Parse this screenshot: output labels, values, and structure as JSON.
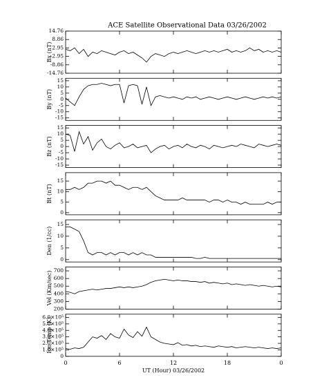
{
  "chart_data": [
    {
      "type": "line",
      "title": "ACE Satellite Observational Data   03/26/2002",
      "ylabel": "Bx (nT)",
      "x": [
        0,
        0.5,
        1,
        1.5,
        2,
        2.5,
        3,
        3.5,
        4,
        4.5,
        5,
        5.5,
        6,
        6.5,
        7,
        7.5,
        8,
        8.5,
        9,
        9.5,
        10,
        10.5,
        11,
        11.5,
        12,
        12.5,
        13,
        13.5,
        14,
        14.5,
        15,
        15.5,
        16,
        16.5,
        17,
        17.5,
        18,
        18.5,
        19,
        19.5,
        20,
        20.5,
        21,
        21.5,
        22,
        22.5,
        23,
        23.5,
        24
      ],
      "values": [
        2,
        1,
        3,
        -1,
        2,
        -3,
        0,
        -1,
        1,
        0,
        -1,
        -2,
        0,
        1,
        -1,
        0,
        -2,
        -4,
        -7,
        -3,
        -1,
        -2,
        -3,
        -1,
        0,
        -1,
        0,
        1,
        0,
        -1,
        0,
        1,
        0,
        1,
        0,
        1,
        2,
        0,
        1,
        0,
        1,
        3,
        1,
        2,
        0,
        1,
        0,
        1,
        0
      ],
      "color": "#000000",
      "xlim": [
        0,
        24
      ],
      "xticks": [
        0,
        6,
        12,
        18,
        {
          "value": 24,
          "label": "0"
        }
      ],
      "ylim": [
        -14.76,
        14.76
      ],
      "yticks": [
        14.76,
        8.86,
        2.95,
        -2.95,
        -8.86,
        -14.76
      ]
    },
    {
      "type": "line",
      "ylabel": "By (nT)",
      "x": [
        0,
        0.5,
        1,
        1.5,
        2,
        2.5,
        3,
        3.5,
        4,
        4.5,
        5,
        5.5,
        6,
        6.5,
        7,
        7.5,
        8,
        8.5,
        9,
        9.5,
        10,
        10.5,
        11,
        11.5,
        12,
        12.5,
        13,
        13.5,
        14,
        14.5,
        15,
        15.5,
        16,
        16.5,
        17,
        17.5,
        18,
        18.5,
        19,
        19.5,
        20,
        20.5,
        21,
        21.5,
        22,
        22.5,
        23,
        23.5,
        24
      ],
      "values": [
        1,
        -2,
        -5,
        2,
        8,
        11,
        12,
        12,
        13,
        12,
        11,
        12,
        12,
        -3,
        11,
        12,
        11,
        -4,
        10,
        -5,
        2,
        3,
        2,
        1,
        2,
        1,
        0,
        2,
        1,
        2,
        0,
        1,
        2,
        1,
        0,
        1,
        2,
        1,
        0,
        1,
        2,
        1,
        0,
        1,
        2,
        1,
        2,
        1,
        2
      ],
      "color": "#000000",
      "xlim": [
        0,
        24
      ],
      "xticks": [
        0,
        6,
        12,
        18,
        {
          "value": 24,
          "label": "0"
        }
      ],
      "ylim": [
        -17,
        17
      ],
      "yticks": [
        15,
        10,
        5,
        0,
        -5,
        -10,
        -15
      ]
    },
    {
      "type": "line",
      "ylabel": "Bz (nT)",
      "x": [
        0,
        0.5,
        1,
        1.5,
        2,
        2.5,
        3,
        3.5,
        4,
        4.5,
        5,
        5.5,
        6,
        6.5,
        7,
        7.5,
        8,
        8.5,
        9,
        9.5,
        10,
        10.5,
        11,
        11.5,
        12,
        12.5,
        13,
        13.5,
        14,
        14.5,
        15,
        15.5,
        16,
        16.5,
        17,
        17.5,
        18,
        18.5,
        19,
        19.5,
        20,
        20.5,
        21,
        21.5,
        22,
        22.5,
        23,
        23.5,
        24
      ],
      "values": [
        10,
        9,
        -4,
        12,
        2,
        8,
        -3,
        3,
        6,
        0,
        -2,
        1,
        3,
        -1,
        0,
        2,
        -1,
        0,
        1,
        -5,
        -2,
        0,
        1,
        -2,
        0,
        1,
        -1,
        2,
        0,
        -1,
        1,
        0,
        -2,
        1,
        0,
        -1,
        0,
        1,
        0,
        2,
        1,
        0,
        -1,
        2,
        1,
        0,
        1,
        2,
        1
      ],
      "color": "#000000",
      "xlim": [
        0,
        24
      ],
      "xticks": [
        0,
        6,
        12,
        18,
        {
          "value": 24,
          "label": "0"
        }
      ],
      "ylim": [
        -17,
        17
      ],
      "yticks": [
        15,
        10,
        5,
        0,
        -5,
        -10,
        -15
      ]
    },
    {
      "type": "line",
      "ylabel": "Bt (nT)",
      "x": [
        0,
        0.5,
        1,
        1.5,
        2,
        2.5,
        3,
        3.5,
        4,
        4.5,
        5,
        5.5,
        6,
        6.5,
        7,
        7.5,
        8,
        8.5,
        9,
        9.5,
        10,
        10.5,
        11,
        11.5,
        12,
        12.5,
        13,
        13.5,
        14,
        14.5,
        15,
        15.5,
        16,
        16.5,
        17,
        17.5,
        18,
        18.5,
        19,
        19.5,
        20,
        20.5,
        21,
        21.5,
        22,
        22.5,
        23,
        23.5,
        24
      ],
      "values": [
        11,
        11,
        12,
        11,
        12,
        14,
        14,
        15,
        15,
        14,
        15,
        13,
        13,
        12,
        11,
        12,
        12,
        11,
        12,
        10,
        8,
        7,
        6,
        6,
        6,
        6,
        7,
        6,
        6,
        6,
        6,
        6,
        5,
        6,
        6,
        5,
        6,
        5,
        5,
        4,
        5,
        4,
        4,
        4,
        4,
        5,
        4,
        5,
        5
      ],
      "color": "#000000",
      "xlim": [
        0,
        24
      ],
      "xticks": [
        0,
        6,
        12,
        18,
        {
          "value": 24,
          "label": "0"
        }
      ],
      "ylim": [
        -1,
        19
      ],
      "yticks": [
        0,
        5,
        10,
        15
      ]
    },
    {
      "type": "line",
      "ylabel": "Den (1/cc)",
      "x": [
        0,
        0.5,
        1,
        1.5,
        2,
        2.5,
        3,
        3.5,
        4,
        4.5,
        5,
        5.5,
        6,
        6.5,
        7,
        7.5,
        8,
        8.5,
        9,
        9.5,
        10,
        10.5,
        11,
        11.5,
        12,
        12.5,
        13,
        13.5,
        14,
        14.5,
        15,
        15.5,
        16,
        16.5,
        17,
        17.5,
        18,
        18.5,
        19,
        19.5,
        20,
        20.5,
        21,
        21.5,
        22,
        22.5,
        23,
        23.5,
        24
      ],
      "values": [
        14,
        14,
        13,
        12,
        8,
        3,
        2,
        3,
        3,
        2,
        3,
        2,
        3,
        3,
        2,
        3,
        2,
        3,
        2,
        2,
        1,
        1,
        1,
        1,
        1,
        1,
        1,
        1,
        1,
        0.5,
        0.5,
        1,
        0.5,
        0.5,
        0.5,
        0.5,
        0.5,
        0.5,
        0.5,
        0.5,
        0.5,
        0.5,
        0.5,
        0.5,
        0.5,
        0.5,
        0.5,
        0.5,
        0.5
      ],
      "color": "#000000",
      "xlim": [
        0,
        24
      ],
      "xticks": [
        0,
        6,
        12,
        18,
        {
          "value": 24,
          "label": "0"
        }
      ],
      "ylim": [
        -1,
        17
      ],
      "yticks": [
        0,
        5,
        10,
        15
      ]
    },
    {
      "type": "line",
      "ylabel": "Vel (Km/sec)",
      "x": [
        0,
        0.5,
        1,
        1.5,
        2,
        2.5,
        3,
        3.5,
        4,
        4.5,
        5,
        5.5,
        6,
        6.5,
        7,
        7.5,
        8,
        8.5,
        9,
        9.5,
        10,
        10.5,
        11,
        11.5,
        12,
        12.5,
        13,
        13.5,
        14,
        14.5,
        15,
        15.5,
        16,
        16.5,
        17,
        17.5,
        18,
        18.5,
        19,
        19.5,
        20,
        20.5,
        21,
        21.5,
        22,
        22.5,
        23,
        23.5,
        24
      ],
      "values": [
        430,
        420,
        400,
        430,
        440,
        450,
        460,
        450,
        460,
        470,
        470,
        480,
        490,
        480,
        490,
        480,
        490,
        500,
        520,
        550,
        570,
        580,
        590,
        580,
        570,
        580,
        570,
        570,
        560,
        560,
        550,
        560,
        540,
        550,
        540,
        530,
        540,
        520,
        530,
        520,
        510,
        520,
        510,
        500,
        510,
        500,
        490,
        500,
        490
      ],
      "color": "#000000",
      "xlim": [
        0,
        24
      ],
      "xticks": [
        0,
        6,
        12,
        18,
        {
          "value": 24,
          "label": "0"
        }
      ],
      "ylim": [
        200,
        750
      ],
      "yticks": [
        200,
        300,
        400,
        500,
        600,
        700
      ]
    },
    {
      "type": "line",
      "ylabel": "Ion Temp (K)",
      "xlabel": "UT (Hour)   03/26/2002",
      "x": [
        0,
        0.5,
        1,
        1.5,
        2,
        2.5,
        3,
        3.5,
        4,
        4.5,
        5,
        5.5,
        6,
        6.5,
        7,
        7.5,
        8,
        8.5,
        9,
        9.5,
        10,
        10.5,
        11,
        11.5,
        12,
        12.5,
        13,
        13.5,
        14,
        14.5,
        15,
        15.5,
        16,
        16.5,
        17,
        17.5,
        18,
        18.5,
        19,
        19.5,
        20,
        20.5,
        21,
        21.5,
        22,
        22.5,
        23,
        23.5,
        24
      ],
      "values": [
        120000,
        110000,
        130000,
        120000,
        140000,
        220000,
        300000,
        280000,
        320000,
        260000,
        350000,
        300000,
        280000,
        420000,
        330000,
        290000,
        380000,
        310000,
        450000,
        300000,
        260000,
        220000,
        200000,
        190000,
        180000,
        210000,
        170000,
        180000,
        160000,
        170000,
        150000,
        160000,
        150000,
        140000,
        160000,
        150000,
        140000,
        150000,
        130000,
        140000,
        150000,
        140000,
        130000,
        140000,
        130000,
        120000,
        130000,
        120000,
        130000
      ],
      "color": "#000000",
      "xlim": [
        0,
        24
      ],
      "xticks": [
        0,
        6,
        12,
        18,
        {
          "value": 24,
          "label": "0"
        }
      ],
      "ylim": [
        0,
        650000
      ],
      "yticks": [
        0,
        {
          "value": 100000,
          "label": "1.0×10⁵"
        },
        {
          "value": 200000,
          "label": "2.0×10⁵"
        },
        {
          "value": 300000,
          "label": "3.0×10⁵"
        },
        {
          "value": 400000,
          "label": "4.0×10⁵"
        },
        {
          "value": 500000,
          "label": "5.0×10⁵"
        },
        {
          "value": 600000,
          "label": "6.0×10⁵"
        }
      ]
    }
  ]
}
